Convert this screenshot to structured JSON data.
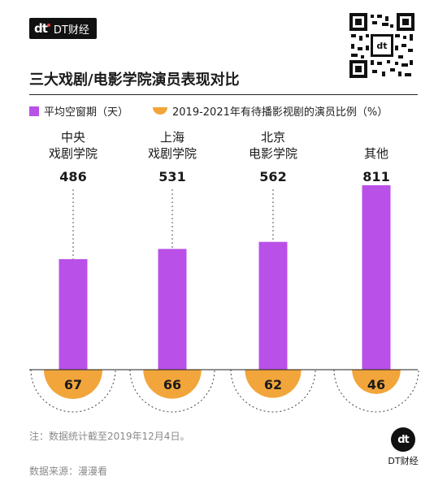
{
  "brand": {
    "mark": "dt",
    "name": "DT财经"
  },
  "title": "三大戏剧/电影学院演员表现对比",
  "legend": {
    "series_bar": "平均空窗期（天）",
    "series_semi": "2019-2021年有待播影视剧的演员比例（%）"
  },
  "colors": {
    "bar": "#b951e8",
    "semi": "#f2a53a",
    "text": "#1a1a1a",
    "muted": "#8a8a8a"
  },
  "chart_data": {
    "type": "bar",
    "categories": [
      "中央\n戏剧学院",
      "上海\n戏剧学院",
      "北京\n电影学院",
      "其他"
    ],
    "series": [
      {
        "name": "平均空窗期（天）",
        "values": [
          486,
          531,
          562,
          811
        ]
      },
      {
        "name": "2019-2021年有待播影视剧的演员比例（%）",
        "values": [
          67,
          66,
          62,
          46
        ]
      }
    ],
    "ylim": [
      0,
      811
    ]
  },
  "note": "注：数据统计截至2019年12月4日。",
  "source": "数据来源：漫漫看"
}
